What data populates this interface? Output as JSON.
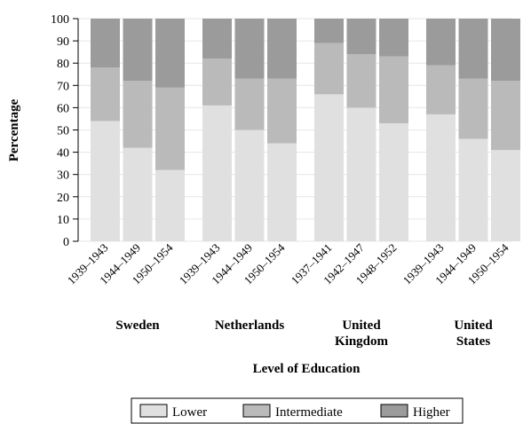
{
  "chart_data": {
    "type": "bar",
    "stacked": true,
    "ylabel": "Percentage",
    "xlabel": "Level of Education",
    "ylim": [
      0,
      100
    ],
    "yticks": [
      0,
      10,
      20,
      30,
      40,
      50,
      60,
      70,
      80,
      90,
      100
    ],
    "grid": "horizontal",
    "legend_position": "bottom",
    "groups": [
      {
        "name": "Sweden",
        "name_lines": [
          "Sweden"
        ],
        "categories": [
          "1939–1943",
          "1944–1949",
          "1950–1954"
        ]
      },
      {
        "name": "Netherlands",
        "name_lines": [
          "Netherlands"
        ],
        "categories": [
          "1939–1943",
          "1944–1949",
          "1950–1954"
        ]
      },
      {
        "name": "United Kingdom",
        "name_lines": [
          "United",
          "Kingdom"
        ],
        "categories": [
          "1937–1941",
          "1942–1947",
          "1948–1952"
        ]
      },
      {
        "name": "United States",
        "name_lines": [
          "United",
          "States"
        ],
        "categories": [
          "1939–1943",
          "1944–1949",
          "1950–1954"
        ]
      }
    ],
    "series": [
      {
        "name": "Lower",
        "color": "#e0e0e0",
        "values": [
          54,
          42,
          32,
          61,
          50,
          44,
          66,
          60,
          53,
          57,
          46,
          41
        ]
      },
      {
        "name": "Intermediate",
        "color": "#bababa",
        "values": [
          24,
          30,
          37,
          21,
          23,
          29,
          23,
          24,
          30,
          22,
          27,
          31
        ]
      },
      {
        "name": "Higher",
        "color": "#9b9b9b",
        "values": [
          22,
          28,
          31,
          18,
          27,
          27,
          11,
          16,
          17,
          21,
          27,
          28
        ]
      }
    ]
  }
}
